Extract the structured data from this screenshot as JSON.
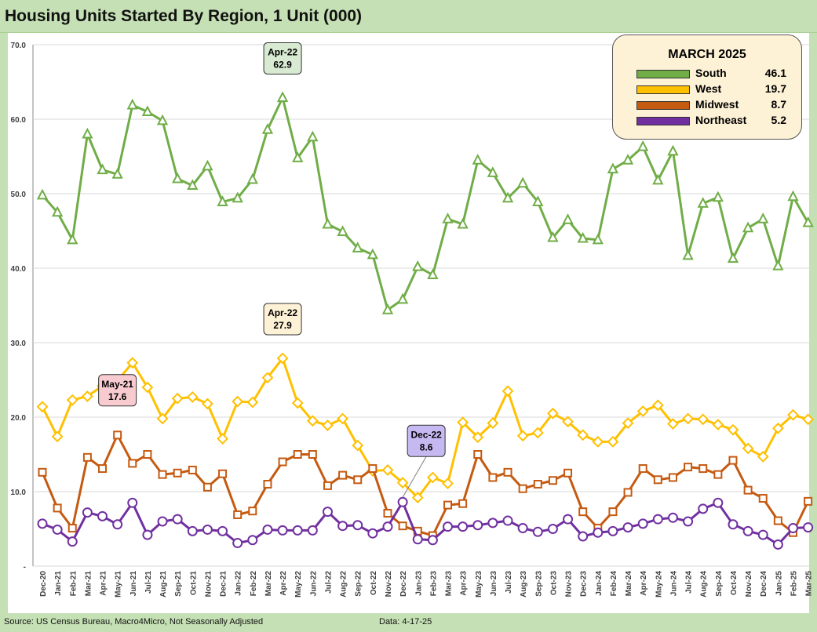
{
  "page": {
    "title": "Housing Units Started By Region, 1 Unit (000)",
    "source": "US Census Bureau, Macro4Micro, Not Seasonally Adjusted",
    "source_prefix": "Source: ",
    "data_date": "Data: 4-17-25"
  },
  "legend": {
    "title": "MARCH 2025",
    "items": [
      {
        "name": "South",
        "value": "46.1",
        "color": "#70ad47"
      },
      {
        "name": "West",
        "value": "19.7",
        "color": "#ffc000"
      },
      {
        "name": "Midwest",
        "value": "8.7",
        "color": "#c55a11"
      },
      {
        "name": "Northeast",
        "value": "5.2",
        "color": "#7030a0"
      }
    ]
  },
  "chart_data": {
    "type": "line",
    "title": "Housing Units Started By Region, 1 Unit (000)",
    "ylim": [
      0,
      70
    ],
    "yticks": [
      0,
      10,
      20,
      30,
      40,
      50,
      60,
      70
    ],
    "ytick_labels": [
      "-",
      "10.0",
      "20.0",
      "30.0",
      "40.0",
      "50.0",
      "60.0",
      "70.0"
    ],
    "grid": "horizontal",
    "legend_position": "top-right",
    "categories": [
      "Dec-20",
      "Jan-21",
      "Feb-21",
      "Mar-21",
      "Apr-21",
      "May-21",
      "Jun-21",
      "Jul-21",
      "Aug-21",
      "Sep-21",
      "Oct-21",
      "Nov-21",
      "Dec-21",
      "Jan-22",
      "Feb-22",
      "Mar-22",
      "Apr-22",
      "May-22",
      "Jun-22",
      "Jul-22",
      "Aug-22",
      "Sep-22",
      "Oct-22",
      "Nov-22",
      "Dec-22",
      "Jan-23",
      "Feb-23",
      "Mar-23",
      "Apr-23",
      "May-23",
      "Jun-23",
      "Jul-23",
      "Aug-23",
      "Sep-23",
      "Oct-23",
      "Nov-23",
      "Dec-23",
      "Jan-24",
      "Feb-24",
      "Mar-24",
      "Apr-24",
      "May-24",
      "Jun-24",
      "Jul-24",
      "Aug-24",
      "Sep-24",
      "Oct-24",
      "Nov-24",
      "Dec-24",
      "Jan-25",
      "Feb-25",
      "Mar-25"
    ],
    "series": [
      {
        "name": "South",
        "color": "#70ad47",
        "marker": "triangle",
        "values": [
          49.8,
          47.5,
          43.8,
          58.0,
          53.2,
          52.6,
          61.9,
          61.0,
          59.8,
          52.0,
          51.1,
          53.7,
          48.9,
          49.4,
          51.9,
          58.6,
          62.9,
          54.8,
          57.6,
          45.9,
          44.9,
          42.7,
          41.8,
          34.4,
          35.8,
          40.2,
          39.1,
          46.6,
          45.9,
          54.5,
          52.8,
          49.4,
          51.4,
          48.9,
          44.1,
          46.5,
          44.0,
          43.8,
          53.3,
          54.5,
          56.3,
          51.8,
          55.7,
          41.7,
          48.7,
          49.5,
          41.3,
          45.4,
          46.6,
          40.3,
          49.6,
          46.1
        ]
      },
      {
        "name": "West",
        "color": "#ffc000",
        "marker": "diamond",
        "values": [
          21.4,
          17.4,
          22.3,
          22.8,
          24.2,
          24.9,
          27.3,
          24.0,
          19.8,
          22.5,
          22.7,
          21.8,
          17.1,
          22.1,
          22.0,
          25.3,
          27.9,
          21.9,
          19.5,
          18.9,
          19.8,
          16.2,
          12.8,
          12.9,
          11.2,
          9.2,
          11.9,
          11.1,
          19.3,
          17.3,
          19.2,
          23.5,
          17.5,
          17.9,
          20.5,
          19.4,
          17.6,
          16.7,
          16.7,
          19.2,
          20.8,
          21.6,
          19.1,
          19.8,
          19.7,
          19.0,
          18.3,
          15.8,
          14.7,
          18.5,
          20.3,
          19.7
        ]
      },
      {
        "name": "Midwest",
        "color": "#c55a11",
        "marker": "square",
        "values": [
          12.6,
          7.8,
          5.1,
          14.6,
          13.1,
          17.6,
          13.8,
          15.0,
          12.3,
          12.5,
          12.9,
          10.6,
          12.4,
          6.9,
          7.4,
          11.0,
          14.0,
          15.0,
          15.0,
          10.8,
          12.2,
          11.6,
          13.1,
          7.1,
          5.4,
          4.7,
          4.1,
          8.2,
          8.4,
          15.0,
          11.9,
          12.6,
          10.4,
          11.0,
          11.5,
          12.5,
          7.3,
          5.1,
          7.3,
          9.9,
          13.1,
          11.6,
          11.9,
          13.3,
          13.1,
          12.3,
          14.2,
          10.2,
          9.1,
          6.1,
          4.5,
          8.7
        ]
      },
      {
        "name": "Northeast",
        "color": "#7030a0",
        "marker": "circle",
        "values": [
          5.7,
          4.9,
          3.3,
          7.2,
          6.7,
          5.6,
          8.5,
          4.2,
          6.0,
          6.3,
          4.7,
          4.9,
          4.7,
          3.1,
          3.5,
          4.9,
          4.8,
          4.8,
          4.8,
          7.3,
          5.4,
          5.5,
          4.4,
          5.3,
          8.6,
          3.6,
          3.5,
          5.3,
          5.3,
          5.5,
          5.8,
          6.1,
          5.1,
          4.6,
          5.0,
          6.3,
          4.0,
          4.5,
          4.7,
          5.2,
          5.7,
          6.3,
          6.5,
          6.0,
          7.7,
          8.5,
          5.6,
          4.7,
          4.2,
          2.9,
          5.1,
          5.2
        ]
      }
    ],
    "annotations": [
      {
        "series": "South",
        "category": "Apr-22",
        "label_top": "Apr-22",
        "label_value": "62.9",
        "fill": "#d9ead3"
      },
      {
        "series": "West",
        "category": "Apr-22",
        "label_top": "Apr-22",
        "label_value": "27.9",
        "fill": "#fdf1d6"
      },
      {
        "series": "Midwest",
        "category": "May-21",
        "label_top": "May-21",
        "label_value": "17.6",
        "fill": "#f8cbd0"
      },
      {
        "series": "Northeast",
        "category": "Dec-22",
        "label_top": "Dec-22",
        "label_value": "8.6",
        "fill": "#c6b9f2"
      }
    ]
  }
}
